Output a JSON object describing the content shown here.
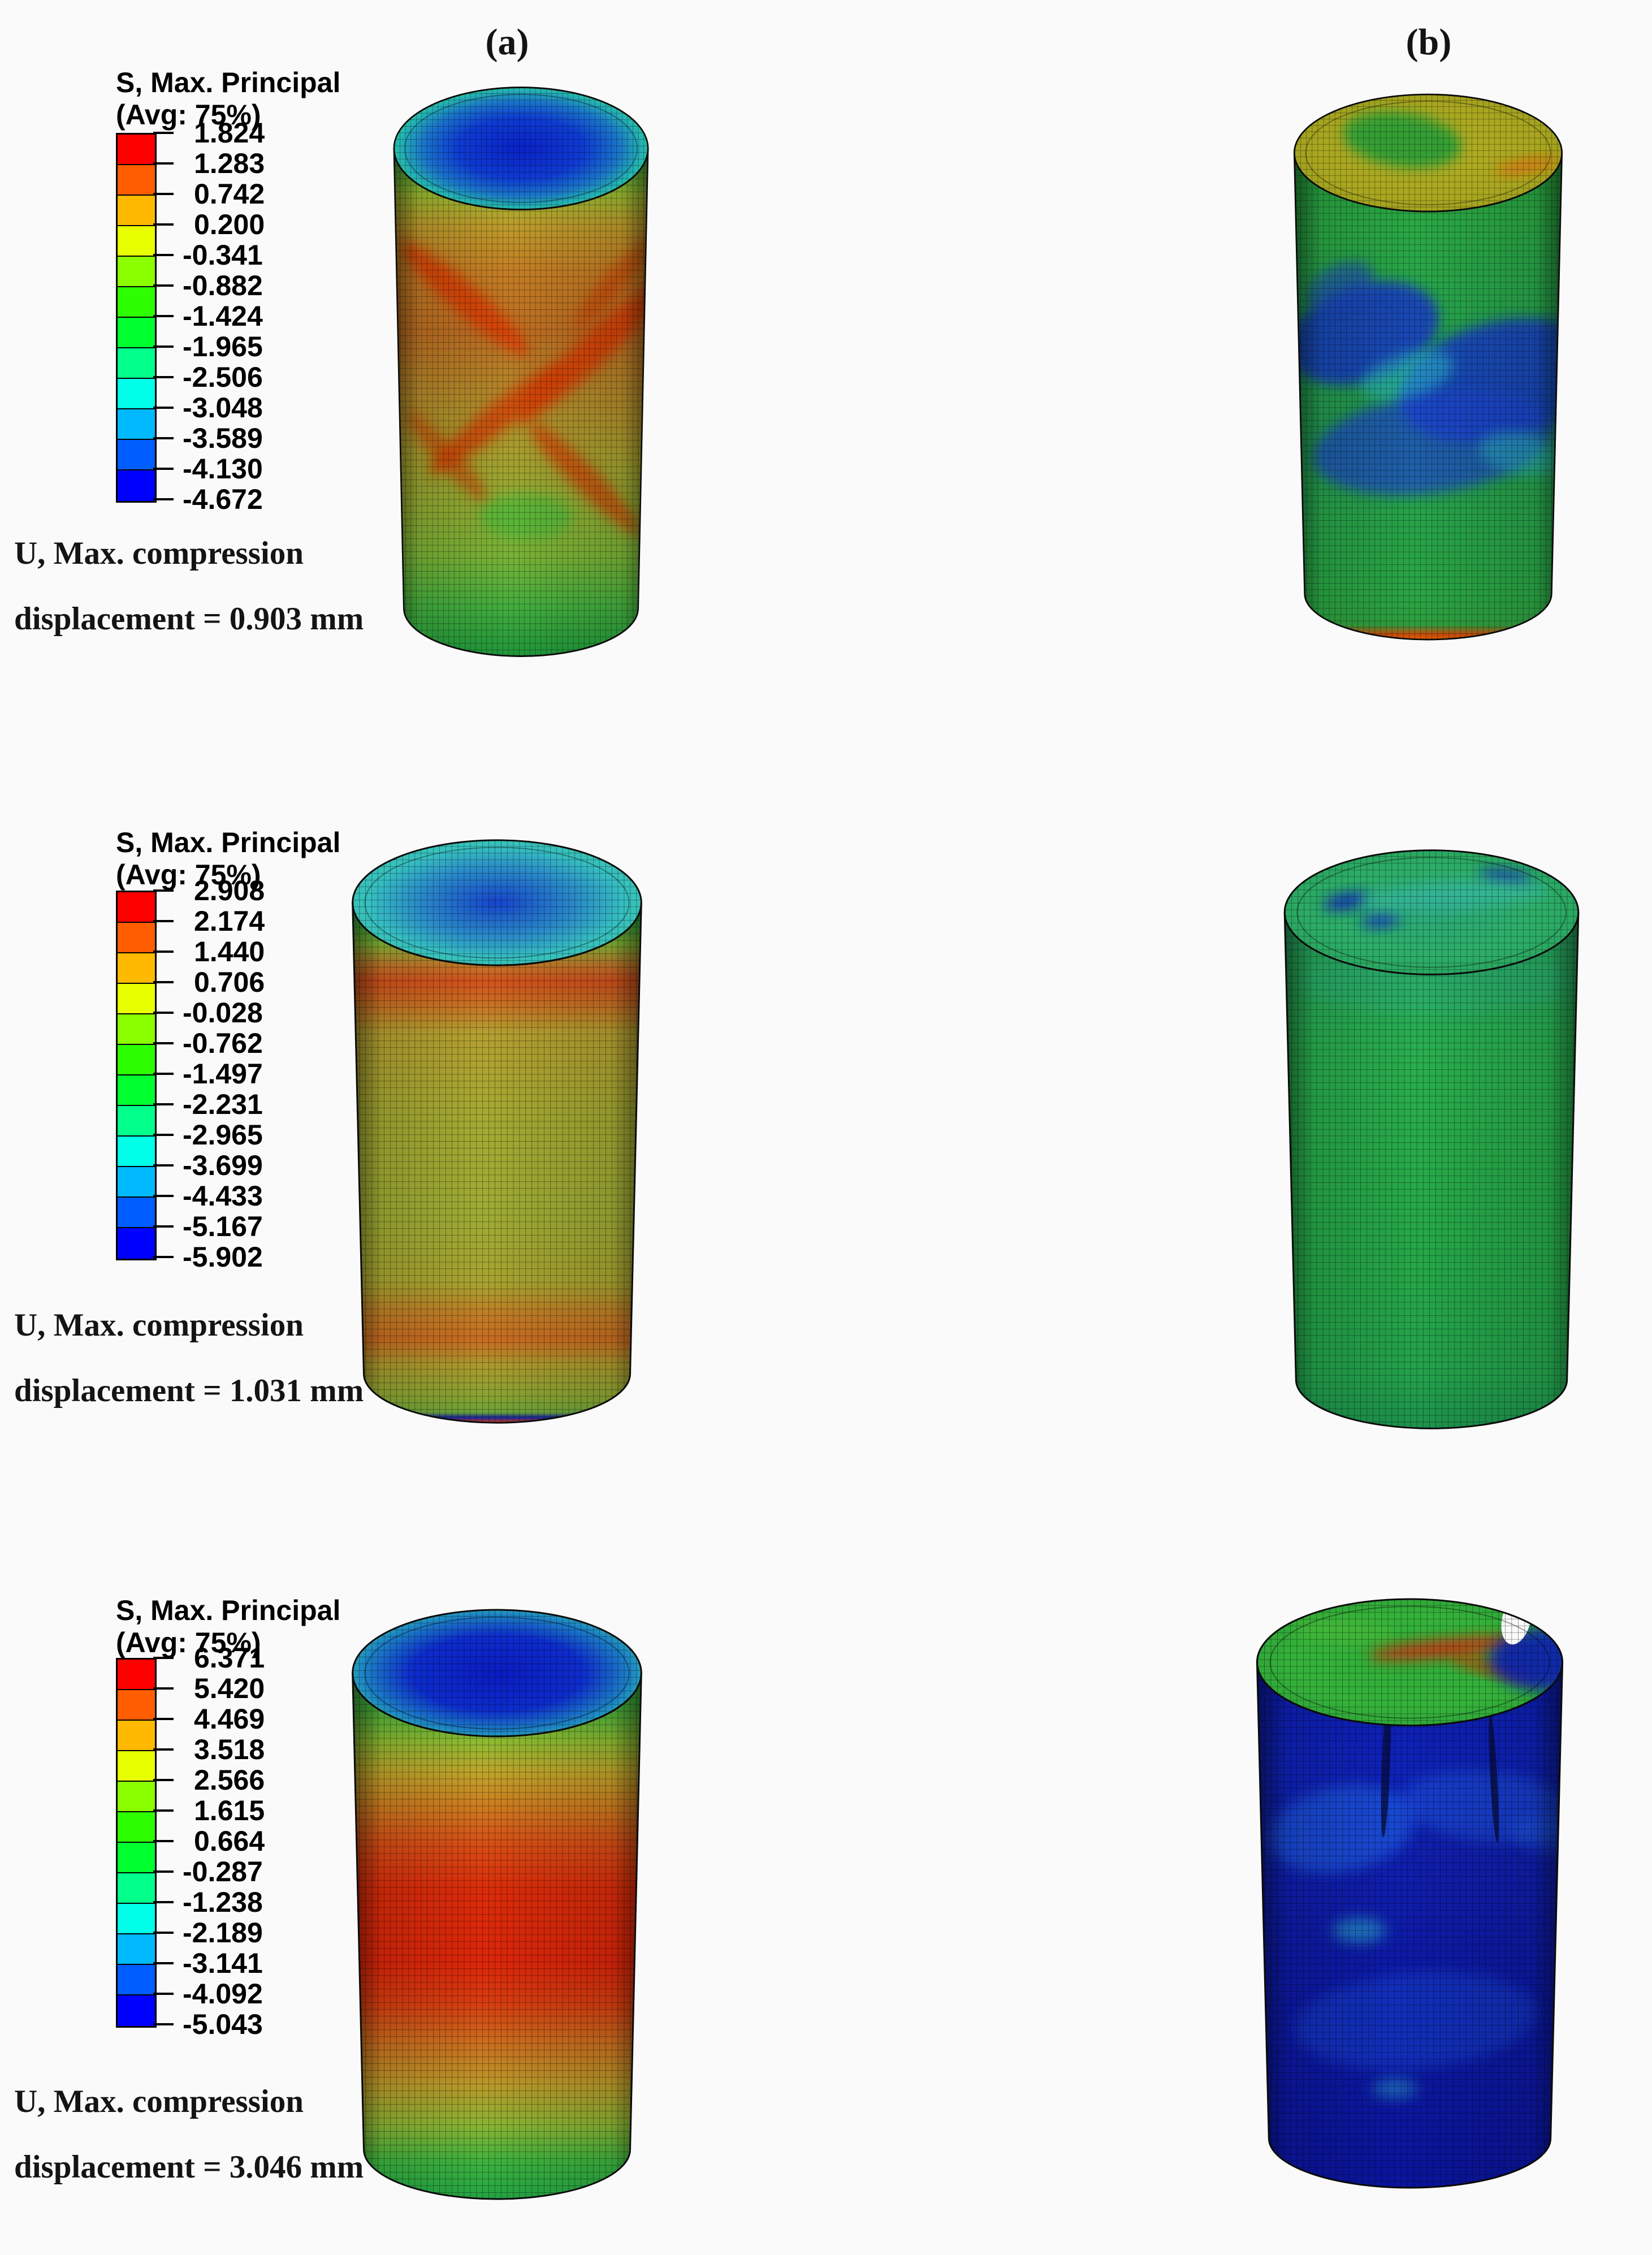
{
  "page": {
    "background": "#fafafa"
  },
  "columns": {
    "a": "(a)",
    "b": "(b)"
  },
  "legend": {
    "title_line1": "S, Max. Principal",
    "title_line2": "(Avg: 75%)",
    "colorbar_colors": [
      "#ff0000",
      "#ff5d00",
      "#ffb900",
      "#e8ff00",
      "#8bff00",
      "#2eff00",
      "#00ff2e",
      "#00ff8b",
      "#00ffe8",
      "#00b9ff",
      "#005dff",
      "#0000ff"
    ]
  },
  "rows": [
    {
      "tick_values": [
        "1.824",
        "1.283",
        "0.742",
        "0.200",
        "-0.341",
        "-0.882",
        "-1.424",
        "-1.965",
        "-2.506",
        "-3.048",
        "-3.589",
        "-4.130",
        "-4.672"
      ],
      "u_line1": "U, Max. compression",
      "u_line2": "displacement = 0.903 mm",
      "panels": {
        "a": {
          "top": [
            [
              0,
              "#0a22c8"
            ],
            [
              40,
              "#0e3bd2"
            ],
            [
              62,
              "#1a74c8"
            ],
            [
              78,
              "#25b7b0"
            ],
            [
              90,
              "#2dc353"
            ],
            [
              100,
              "#1f9c3c"
            ]
          ],
          "body": [
            [
              0,
              "#2ba844"
            ],
            [
              4,
              "#54b13a"
            ],
            [
              9,
              "#9aba30"
            ],
            [
              15,
              "#bd9c2c"
            ],
            [
              24,
              "#c47e24"
            ],
            [
              36,
              "#bd6e22"
            ],
            [
              48,
              "#b4882a"
            ],
            [
              60,
              "#a89e2e"
            ],
            [
              70,
              "#92aa32"
            ],
            [
              80,
              "#7ab236"
            ],
            [
              90,
              "#44ae3e"
            ],
            [
              100,
              "#1f9639"
            ]
          ],
          "ftop": [],
          "fbody": [
            [
              175,
              400,
              165,
              28,
              38,
              "#dd3404",
              0.75,
              0
            ],
            [
              430,
              500,
              195,
              30,
              -40,
              "#dd3404",
              0.75,
              0
            ],
            [
              240,
              620,
              170,
              26,
              -36,
              "#d63404",
              0.7,
              0
            ],
            [
              420,
              730,
              150,
              25,
              42,
              "#d63404",
              0.65,
              0
            ],
            [
              140,
              690,
              115,
              22,
              45,
              "#cc3a06",
              0.55,
              0
            ],
            [
              480,
              370,
              115,
              22,
              -45,
              "#cc3a06",
              0.55,
              0
            ],
            [
              300,
              800,
              95,
              42,
              0,
              "#3dbb3b",
              0.6,
              0
            ]
          ]
        },
        "b": {
          "top": [
            [
              0,
              "#b3ae24"
            ],
            [
              70,
              "#a8a620"
            ],
            [
              100,
              "#97991e"
            ]
          ],
          "body": [
            [
              0,
              "#28a23e"
            ],
            [
              15,
              "#2aa844"
            ],
            [
              35,
              "#27a44c"
            ],
            [
              55,
              "#23984f"
            ],
            [
              75,
              "#27a349"
            ],
            [
              92,
              "#2aa443"
            ],
            [
              97,
              "#2f9e3e"
            ],
            [
              99,
              "#cc4c0a"
            ],
            [
              100,
              "#e05e04"
            ]
          ],
          "ftop": [
            [
              240,
              100,
              115,
              52,
              8,
              "#2f9e36",
              0.95,
              0
            ],
            [
              480,
              150,
              62,
              12,
              -10,
              "#d8700e",
              0.9,
              0
            ]
          ],
          "fbody": [
            [
              165,
              470,
              150,
              92,
              -18,
              "#1530cf",
              0.8,
              0
            ],
            [
              430,
              560,
              200,
              112,
              -14,
              "#1634d2",
              0.8,
              0
            ],
            [
              300,
              680,
              235,
              95,
              -8,
              "#1b44cf",
              0.7,
              0
            ],
            [
              250,
              550,
              92,
              42,
              -16,
              "#2ab8c8",
              0.55,
              0
            ],
            [
              470,
              700,
              82,
              40,
              10,
              "#2ab4c4",
              0.5,
              0
            ],
            [
              120,
              380,
              70,
              40,
              -25,
              "#1d44c4",
              0.6,
              0
            ]
          ]
        }
      }
    },
    {
      "tick_values": [
        "2.908",
        "2.174",
        "1.440",
        "0.706",
        "-0.028",
        "-0.762",
        "-1.497",
        "-2.231",
        "-2.965",
        "-3.699",
        "-4.433",
        "-5.167",
        "-5.902"
      ],
      "u_line1": "U, Max. compression",
      "u_line2": "displacement = 1.031 mm",
      "panels": {
        "a": {
          "top": [
            [
              0,
              "#1644cc"
            ],
            [
              45,
              "#2a8cc8"
            ],
            [
              72,
              "#36c0c0"
            ],
            [
              100,
              "#3cc49c"
            ]
          ],
          "body": [
            [
              0,
              "#2cae46"
            ],
            [
              4,
              "#3cb23e"
            ],
            [
              8,
              "#86b834"
            ],
            [
              12,
              "#c2782a"
            ],
            [
              15,
              "#d4521c"
            ],
            [
              19,
              "#cc6c22"
            ],
            [
              25,
              "#b5a030"
            ],
            [
              40,
              "#a6aa32"
            ],
            [
              60,
              "#9fac34"
            ],
            [
              73,
              "#a8a430"
            ],
            [
              79,
              "#c07e26"
            ],
            [
              84,
              "#ca6c20"
            ],
            [
              89,
              "#ab9a2e"
            ],
            [
              95,
              "#8aa432"
            ],
            [
              98,
              "#6ba238"
            ],
            [
              99,
              "#18269e"
            ],
            [
              100,
              "#d83a10"
            ]
          ],
          "ftop": [],
          "fbody": []
        },
        "b": {
          "top": [
            [
              0,
              "#2ba878"
            ],
            [
              55,
              "#2dae68"
            ],
            [
              100,
              "#28a25c"
            ]
          ],
          "body": [
            [
              0,
              "#25a564"
            ],
            [
              12,
              "#27aa58"
            ],
            [
              28,
              "#29ae4e"
            ],
            [
              50,
              "#27aa49"
            ],
            [
              72,
              "#25a648"
            ],
            [
              90,
              "#23a14b"
            ],
            [
              100,
              "#1d914c"
            ]
          ],
          "ftop": [
            [
              140,
              105,
              40,
              14,
              -12,
              "#1228b8",
              0.9,
              0
            ],
            [
              200,
              140,
              34,
              12,
              -5,
              "#1430c0",
              0.85,
              0
            ],
            [
              420,
              60,
              46,
              11,
              8,
              "#1228b8",
              0.85,
              0
            ],
            [
              330,
              95,
              170,
              26,
              -4,
              "#37b9ab",
              0.6,
              0
            ]
          ],
          "fbody": [
            [
              300,
              250,
              240,
              60,
              0,
              "#2db083",
              0.35,
              0
            ]
          ]
        }
      }
    },
    {
      "tick_values": [
        "6.371",
        "5.420",
        "4.469",
        "3.518",
        "2.566",
        "1.615",
        "0.664",
        "-0.287",
        "-1.238",
        "-2.189",
        "-3.141",
        "-4.092",
        "-5.043"
      ],
      "u_line1": "U, Max. compression",
      "u_line2": "displacement = 3.046 mm",
      "panels": {
        "a": {
          "top": [
            [
              0,
              "#0a1cc2"
            ],
            [
              48,
              "#0d2ccc"
            ],
            [
              75,
              "#1d84c4"
            ],
            [
              88,
              "#2dbcae"
            ],
            [
              100,
              "#2dbc62"
            ]
          ],
          "body": [
            [
              0,
              "#27ab46"
            ],
            [
              7,
              "#4ab23b"
            ],
            [
              13,
              "#8ebc31"
            ],
            [
              19,
              "#c0a42a"
            ],
            [
              25,
              "#cd7e20"
            ],
            [
              32,
              "#d85016"
            ],
            [
              41,
              "#dc2c0a"
            ],
            [
              55,
              "#dd260a"
            ],
            [
              63,
              "#d83e10"
            ],
            [
              70,
              "#cc6c1e"
            ],
            [
              78,
              "#bb9829"
            ],
            [
              86,
              "#8ab433"
            ],
            [
              93,
              "#3cb23e"
            ],
            [
              100,
              "#23a443"
            ]
          ],
          "ftop": [],
          "fbody": []
        },
        "b": {
          "top": [
            [
              0,
              "#2fae3a"
            ],
            [
              60,
              "#35b23a"
            ],
            [
              100,
              "#2c9e38"
            ]
          ],
          "body": [
            [
              0,
              "#0c1cb2"
            ],
            [
              18,
              "#0e22ba"
            ],
            [
              35,
              "#101fb0"
            ],
            [
              55,
              "#0d1aa8"
            ],
            [
              75,
              "#0c18a2"
            ],
            [
              100,
              "#0a149c"
            ]
          ],
          "ftop": [
            [
              180,
              70,
              90,
              22,
              6,
              "#46b838",
              0.7,
              0
            ],
            [
              350,
              100,
              130,
              16,
              -6,
              "#d42c08",
              0.85,
              0
            ],
            [
              430,
              135,
              75,
              11,
              14,
              "#cc3006",
              0.8,
              0
            ],
            [
              520,
              120,
              95,
              55,
              0,
              "#0d1fb4",
              0.9,
              0
            ],
            [
              470,
              50,
              24,
              44,
              12,
              "#fafafa",
              1,
              1
            ]
          ],
          "fbody": [
            [
              175,
              420,
              125,
              75,
              -12,
              "#1e58e0",
              0.7,
              0
            ],
            [
              420,
              380,
              145,
              62,
              6,
              "#1c50dc",
              0.6,
              0
            ],
            [
              300,
              760,
              205,
              85,
              -5,
              "#1440cc",
              0.55,
              0
            ],
            [
              205,
              600,
              45,
              22,
              0,
              "#2aa8cc",
              0.6,
              0
            ],
            [
              265,
              880,
              38,
              17,
              0,
              "#2aa8cc",
              0.5,
              0
            ],
            [
              520,
              430,
              60,
              30,
              10,
              "#1e58e0",
              0.5,
              0
            ],
            [
              250,
              300,
              7,
              135,
              2,
              "#060c44",
              0.8,
              1
            ],
            [
              432,
              330,
              6,
              115,
              -3,
              "#060c44",
              0.8,
              1
            ]
          ]
        }
      }
    }
  ]
}
